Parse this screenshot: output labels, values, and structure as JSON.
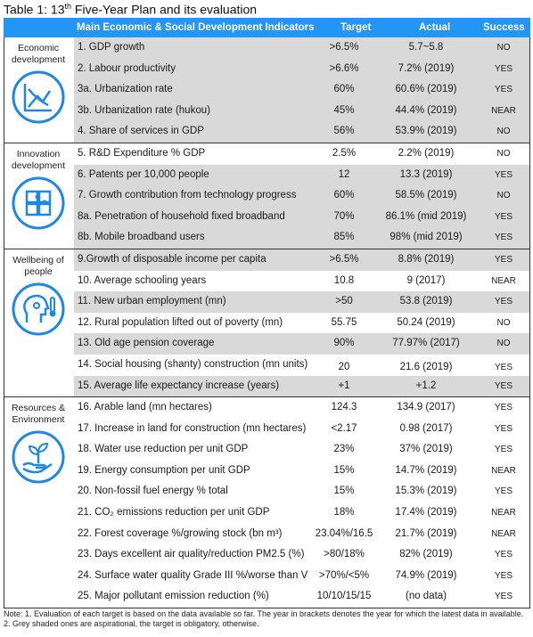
{
  "title": {
    "prefix": "Table 1: 13",
    "sup": "th",
    "rest": " Five-Year Plan and its evaluation"
  },
  "header": {
    "indicators": "Main Economic & Social Development Indicators",
    "target": "Target",
    "actual": "Actual",
    "success": "Success"
  },
  "sections": [
    {
      "category": "Economic development",
      "icon": "chart-trend-icon",
      "rows": [
        {
          "indicator": "1. GDP growth",
          "target": ">6.5%",
          "actual": "5.7~5.8",
          "success": "NO",
          "shaded": true
        },
        {
          "indicator": "2. Labour productivity",
          "target": ">6.6%",
          "actual": "7.2% (2019)",
          "success": "YES",
          "shaded": true
        },
        {
          "indicator": "3a. Urbanization rate",
          "target": "60%",
          "actual": "60.6% (2019)",
          "success": "YES",
          "shaded": true
        },
        {
          "indicator": "3b. Urbanization rate (hukou)",
          "target": "45%",
          "actual": "44.4% (2019)",
          "success": "NEAR",
          "shaded": true
        },
        {
          "indicator": "4. Share of services in GDP",
          "target": "56%",
          "actual": "53.9% (2019)",
          "success": "NO",
          "shaded": true
        }
      ]
    },
    {
      "category": "Innovation development",
      "icon": "puzzle-icon",
      "rows": [
        {
          "indicator": "5. R&D Expenditure % GDP",
          "target": "2.5%",
          "actual": "2.2% (2019)",
          "success": "NO",
          "shaded": false
        },
        {
          "indicator": "6. Patents per 10,000 people",
          "target": "12",
          "actual": "13.3 (2019)",
          "success": "YES",
          "shaded": true
        },
        {
          "indicator": "7. Growth contribution from technology progress",
          "target": "60%",
          "actual": "58.5% (2019)",
          "success": "NO",
          "shaded": true
        },
        {
          "indicator": "8a. Penetration of household fixed broadband",
          "target": "70%",
          "actual": "86.1% (mid 2019)",
          "success": "YES",
          "shaded": true
        },
        {
          "indicator": "8b. Mobile broadband users",
          "target": "85%",
          "actual": "98% (mid 2019)",
          "success": "YES",
          "shaded": true
        }
      ]
    },
    {
      "category": "Wellbeing of people",
      "icon": "head-thermometer-icon",
      "rows": [
        {
          "indicator": "9.Growth of disposable income per capita",
          "target": ">6.5%",
          "actual": "8.8% (2019)",
          "success": "YES",
          "shaded": true
        },
        {
          "indicator": "10. Average schooling years",
          "target": "10.8",
          "actual": "9 (2017)",
          "success": "NEAR",
          "shaded": false
        },
        {
          "indicator": "11. New urban employment (mn)",
          "target": ">50",
          "actual": "53.8 (2019)",
          "success": "YES",
          "shaded": true
        },
        {
          "indicator": "12. Rural population lifted out of poverty (mn)",
          "target": "55.75",
          "actual": "50.24 (2019)",
          "success": "NO",
          "shaded": false
        },
        {
          "indicator": "13. Old age pension coverage",
          "target": "90%",
          "actual": "77.97% (2017)",
          "success": "NO",
          "shaded": true
        },
        {
          "indicator": "14. Social housing (shanty) construction (mn units)",
          "target": "20",
          "actual": "21.6 (2019)",
          "success": "YES",
          "shaded": false,
          "low": true
        },
        {
          "indicator": "15. Average life expectancy increase (years)",
          "target": "+1",
          "actual": "+1.2",
          "success": "YES",
          "shaded": true
        }
      ]
    },
    {
      "category": "Resources & Environment",
      "icon": "hand-plant-icon",
      "rows": [
        {
          "indicator": "16. Arable land (mn hectares)",
          "target": "124.3",
          "actual": "134.9 (2017)",
          "success": "YES",
          "shaded": false
        },
        {
          "indicator": "17. Increase in land for construction (mn hectares)",
          "target": "<2.17",
          "actual": "0.98 (2017)",
          "success": "YES",
          "shaded": false
        },
        {
          "indicator": "18. Water use reduction per unit GDP",
          "target": "23%",
          "actual": "37% (2019)",
          "success": "YES",
          "shaded": false
        },
        {
          "indicator": "19. Energy consumption per unit GDP",
          "target": "15%",
          "actual": "14.7% (2019)",
          "success": "NEAR",
          "shaded": false
        },
        {
          "indicator": "20. Non-fossil fuel energy % total",
          "target": "15%",
          "actual": "15.3% (2019)",
          "success": "YES",
          "shaded": false
        },
        {
          "indicator": "21. CO₂ emissions reduction per unit GDP",
          "target": "18%",
          "actual": "17.4% (2019)",
          "success": "NEAR",
          "shaded": false
        },
        {
          "indicator": "22. Forest coverage %/growing stock (bn m³)",
          "target": "23.04%/16.5",
          "actual": "21.7% (2019)",
          "success": "NEAR",
          "shaded": false
        },
        {
          "indicator": "23. Days excellent air quality/reduction PM2.5 (%)",
          "target": ">80/18%",
          "actual": "82% (2019)",
          "success": "YES",
          "shaded": false
        },
        {
          "indicator": "24. Surface water quality Grade III %/worse than V",
          "target": ">70%/<5%",
          "actual": "74.9% (2019)",
          "success": "YES",
          "shaded": false
        },
        {
          "indicator": "25. Major pollutant emission reduction (%)",
          "target": "10/10/15/15",
          "actual": "(no data)",
          "success": "YES",
          "shaded": false
        }
      ]
    }
  ],
  "note": "Note: 1. Evaluation of each target is based on the data available so far. The year in brackets denotes the year for which the latest data in available.  2. Grey shaded ones are aspirational, the target is obligatory, otherwise.",
  "colors": {
    "header": "#2196f3",
    "shaded": "#d9d9d9",
    "icon": "#1e88e5"
  }
}
